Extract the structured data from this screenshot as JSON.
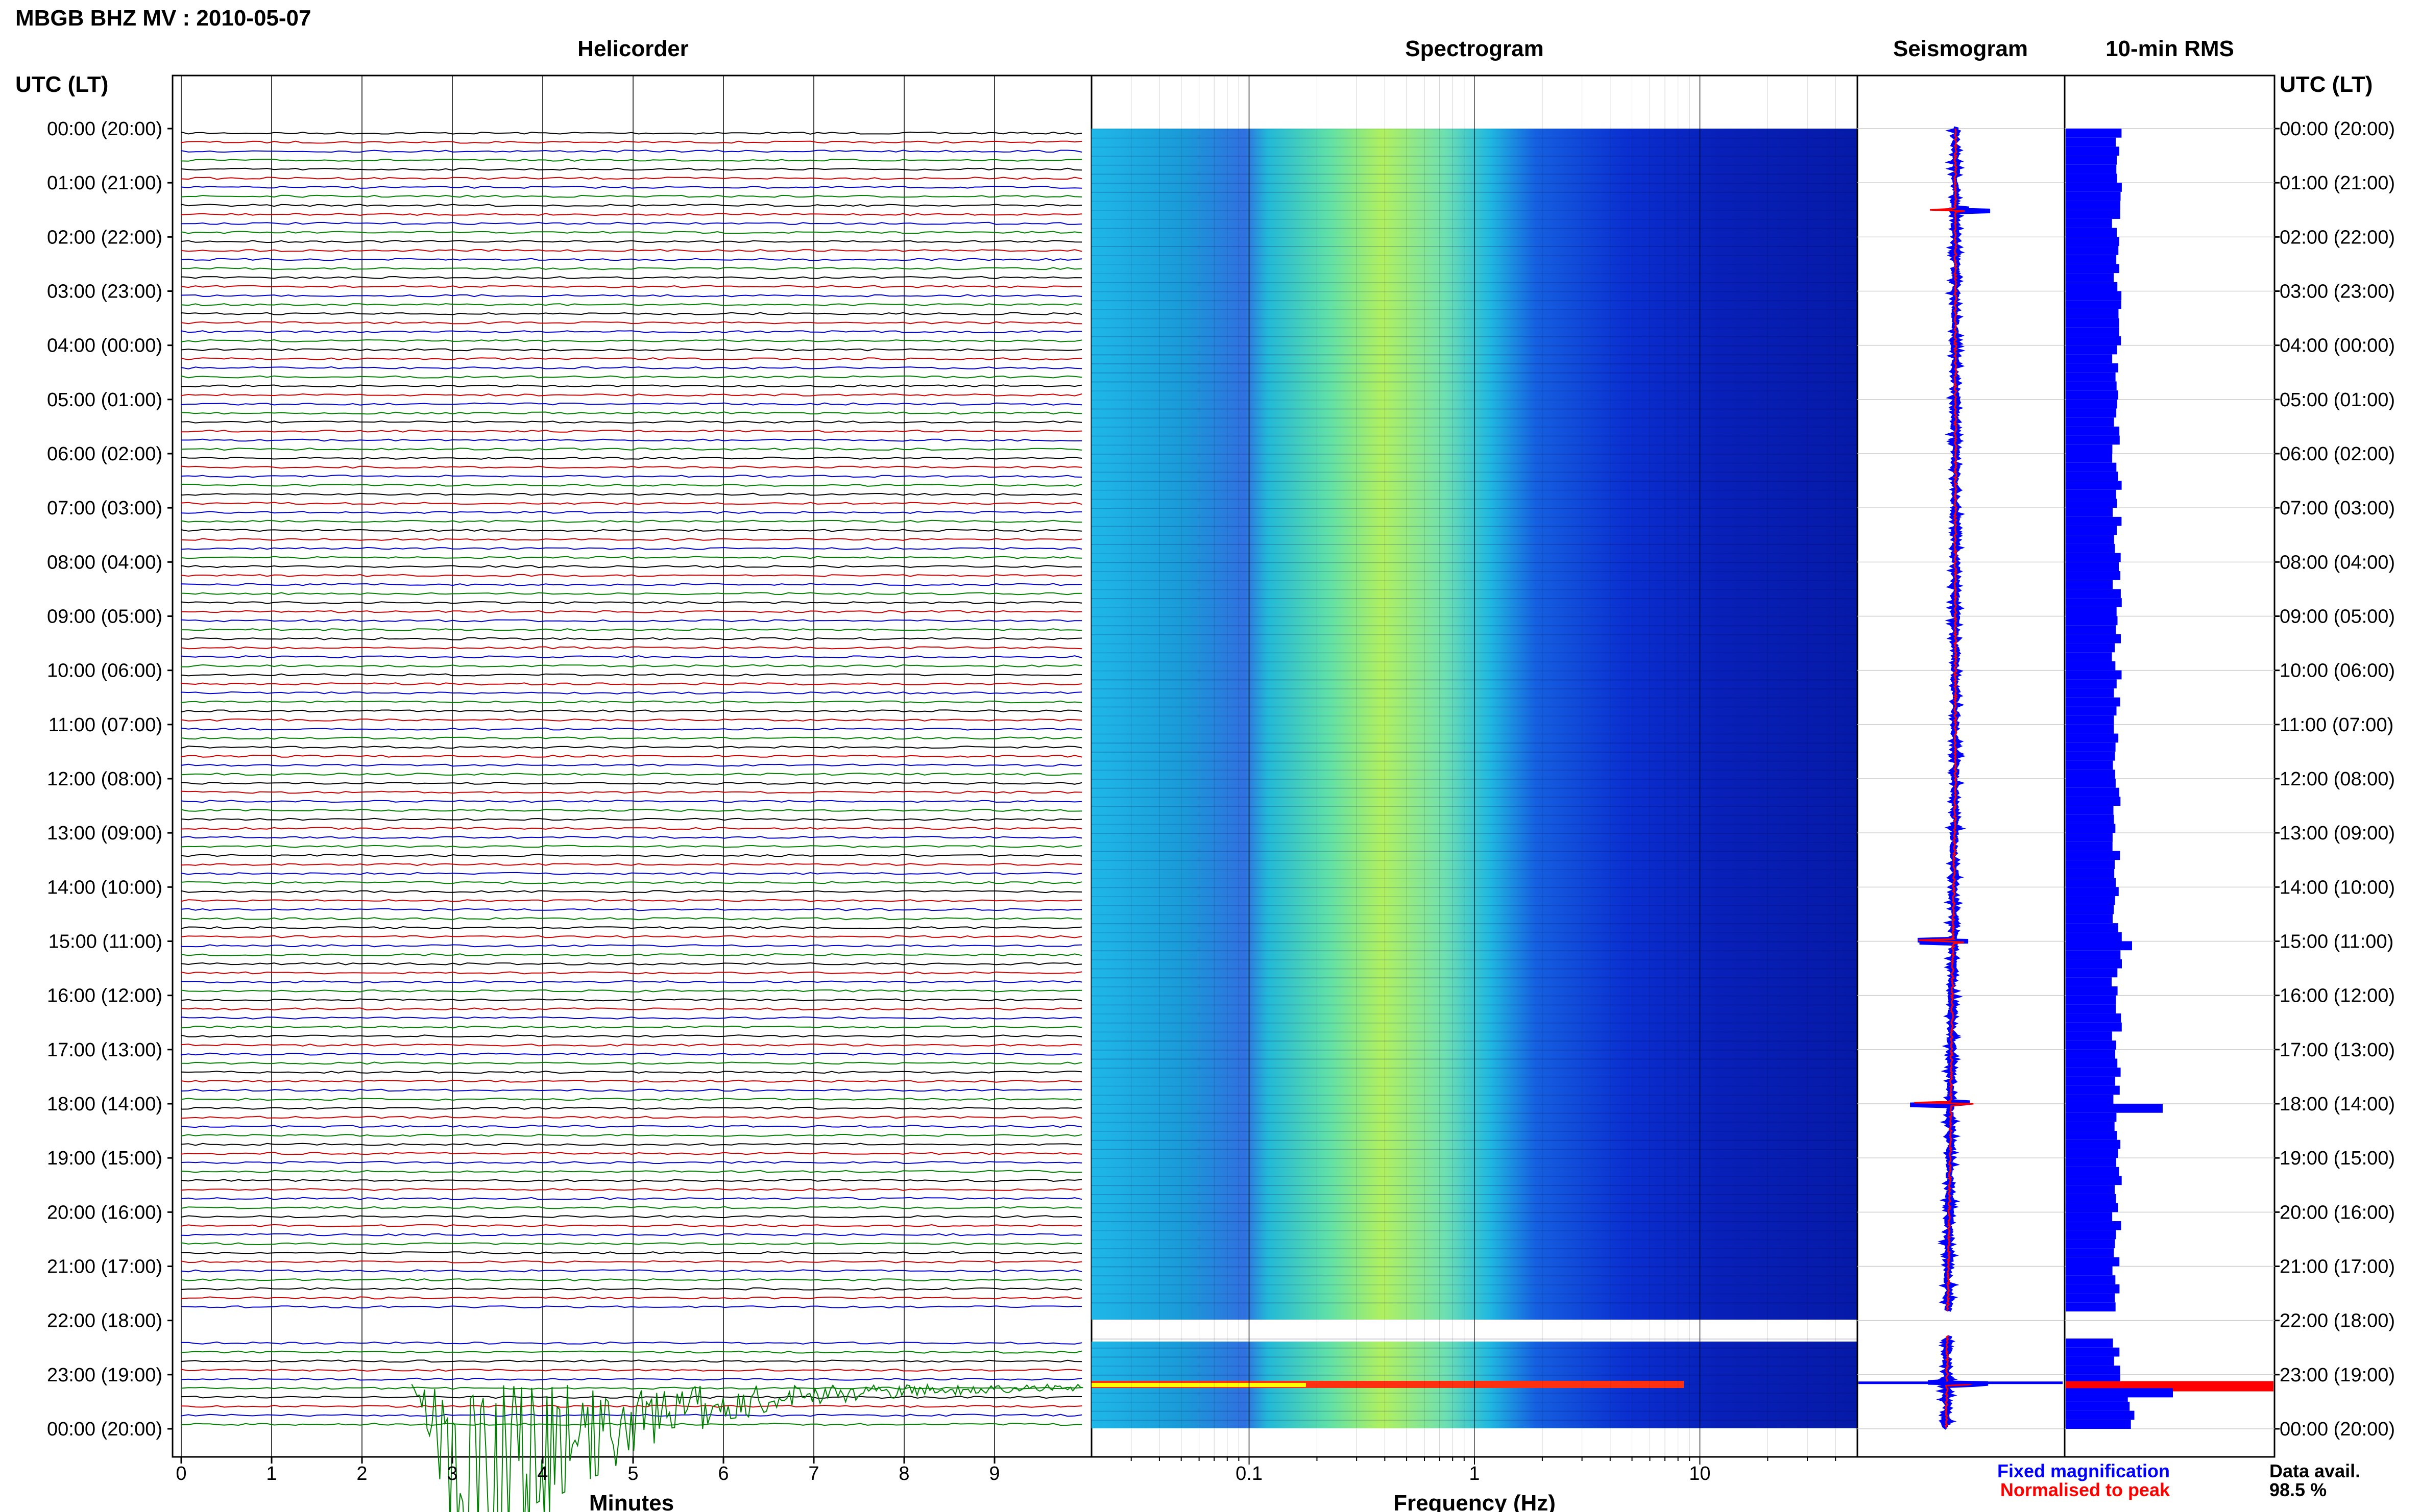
{
  "header": {
    "title": "MBGB BHZ MV : 2010-05-07"
  },
  "panels": {
    "helicorder": "Helicorder",
    "spectrogram": "Spectrogram",
    "seismogram": "Seismogram",
    "rms": "10-min RMS"
  },
  "axis": {
    "time_header": "UTC (LT)",
    "x_label_helicorder": "Minutes",
    "x_label_spectrogram": "Frequency (Hz)"
  },
  "footer": {
    "fixed_magnification": "Fixed magnification",
    "normalised_to_peak": "Normalised to peak",
    "data_avail_label": "Data avail.",
    "data_avail_value": "98.5 %"
  },
  "colors": {
    "trace_cycle": [
      "#000000",
      "#cc0000",
      "#0000cc",
      "#008000"
    ],
    "helicorder_event": "#008000",
    "helicorder_event_red": "#8b0000",
    "spectrogram_low": "#00008b",
    "spectrogram_mid": "#00bfff",
    "spectrogram_high": "#ffff00",
    "seismogram_fixed": "#0000ff",
    "seismogram_normalised": "#ff0000",
    "rms_bar": "#0000ff",
    "rms_peak": "#ff0000"
  },
  "chart_data": [
    {
      "type": "heatmap",
      "name_printed": "Helicorder",
      "xlabel": "Minutes",
      "x_ticks": [
        "0",
        "1",
        "2",
        "3",
        "4",
        "5",
        "6",
        "7",
        "8",
        "9"
      ],
      "xlim": [
        0,
        10
      ],
      "y_tick_labels": [
        "00:00 (20:00)",
        "01:00 (21:00)",
        "02:00 (22:00)",
        "03:00 (23:00)",
        "04:00 (00:00)",
        "05:00 (01:00)",
        "06:00 (02:00)",
        "07:00 (03:00)",
        "08:00 (04:00)",
        "09:00 (05:00)",
        "10:00 (06:00)",
        "11:00 (07:00)",
        "12:00 (08:00)",
        "13:00 (09:00)",
        "14:00 (10:00)",
        "15:00 (11:00)",
        "16:00 (12:00)",
        "17:00 (13:00)",
        "18:00 (14:00)",
        "19:00 (15:00)",
        "20:00 (16:00)",
        "21:00 (17:00)",
        "22:00 (18:00)",
        "23:00 (19:00)",
        "00:00 (20:00)"
      ],
      "lines_per_hour": 6,
      "minutes_per_line": 10,
      "grid": true,
      "data_gap_utc": [
        "21:50",
        "22:20"
      ],
      "large_event": {
        "start_utc": "23:02:35",
        "peak_minute": 3.0,
        "line_color": "green"
      }
    },
    {
      "type": "heatmap",
      "name_printed": "Spectrogram",
      "xlabel": "Frequency (Hz)",
      "x_scale": "log",
      "x_ticks": [
        "0.1",
        "1",
        "10"
      ],
      "xlim": [
        0.02,
        50
      ],
      "colormap": "jet",
      "grid": true
    },
    {
      "type": "line",
      "name_printed": "Seismogram",
      "series_colors": [
        "blue",
        "red"
      ],
      "spikes_utc": [
        "01:30",
        "15:00",
        "18:00",
        "23:10"
      ]
    },
    {
      "type": "bar",
      "name_printed": "10-min RMS",
      "orientation": "horizontal",
      "peaks_utc": [
        "15:00",
        "18:00",
        "23:10"
      ]
    }
  ]
}
